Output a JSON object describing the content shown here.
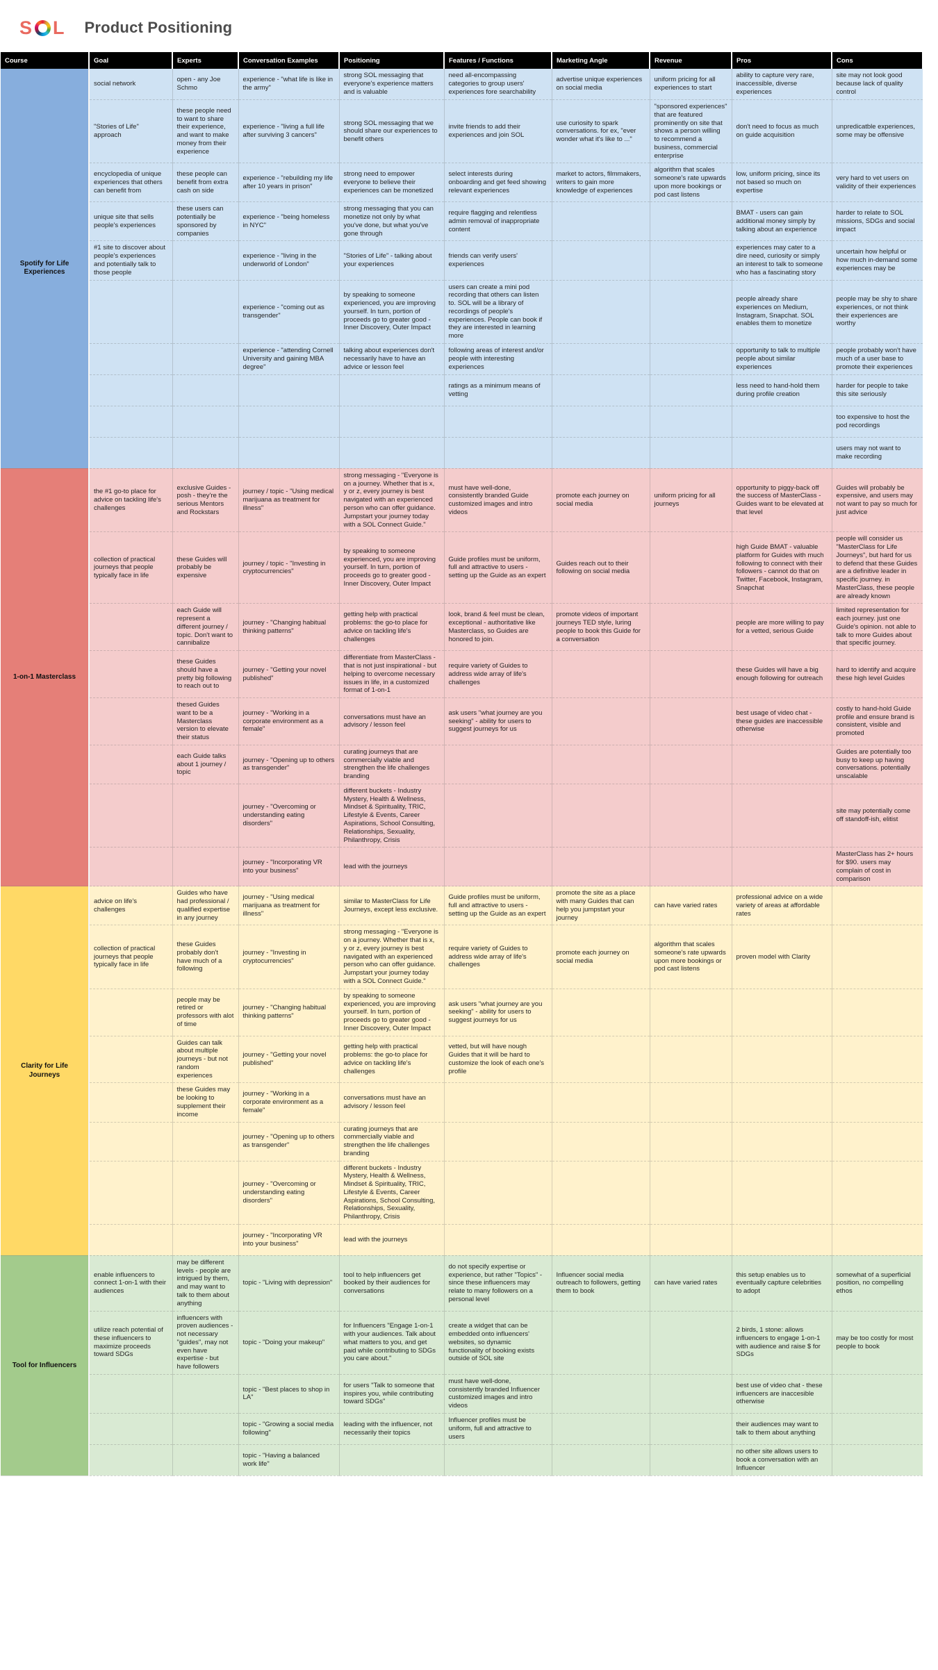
{
  "logo": {
    "s": "S",
    "l": "L"
  },
  "title": "Product Positioning",
  "columns": [
    "Course",
    "Goal",
    "Experts",
    "Conversation Examples",
    "Positioning",
    "Features / Functions",
    "Marketing Angle",
    "Revenue",
    "Pros",
    "Cons"
  ],
  "sections": [
    {
      "course": "Spotify for Life Experiences",
      "colors": {
        "course_bg": "#87AEDD",
        "row_bg": "#CFE2F3"
      },
      "rows": [
        [
          "social network",
          "open - any Joe Schmo",
          "experience - \"what life is like in the army\"",
          "strong SOL messaging that everyone's experience matters and is valuable",
          "need all-encompassing categories to group users' experiences fore searchability",
          "advertise unique experiences on social media",
          "uniform pricing for all experiences to start",
          "ability to capture very rare, inaccessible, diverse experiences",
          "site may not look good because lack of quality control"
        ],
        [
          "\"Stories of Life\" approach",
          "these people need to want to share their experience, and want to make money from their experience",
          "experience - \"living a full life after surviving 3 cancers\"",
          "strong SOL messaging that we should share our experiences to benefit others",
          "invite friends to add their experiences and join SOL",
          "use curiosity to spark conversations. for ex, \"ever wonder what it's like to ...\"",
          "\"sponsored experiences\" that are featured prominently on site that shows a person willing to recommend a business, commercial enterprise",
          "don't need to focus as much on guide acquisition",
          "unpredicatble experiences, some may be offensive"
        ],
        [
          "encyclopedia of unique experiences that others can benefit from",
          "these people can benefit from extra cash on side",
          "experience - \"rebuilding my life after 10 years in prison\"",
          "strong need to empower everyone to believe their experiences can be monetized",
          "select interests during onboarding and get feed showing relevant experiences",
          "market to actors, filmmakers, writers to gain more knowledge of experiences",
          "algorithm that scales someone's rate upwards upon more bookings or pod cast listens",
          "low, uniform pricing, since its not based so much on expertise",
          "very hard to vet users on validity of their experiences"
        ],
        [
          "unique site that sells people's experiences",
          "these users can potentially be sponsored by companies",
          "experience - \"being homeless in NYC\"",
          "strong messaging that you can monetize not only by what you've done, but what you've gone through",
          "require flagging and relentless admin removal of inappropriate content",
          "",
          "",
          "BMAT - users can gain additional money simply by talking about an experience",
          "harder to relate to SOL missions, SDGs and social impact"
        ],
        [
          "#1 site to discover about people's experiences and potentially talk to those people",
          "",
          "experience - \"living in the underworld of London\"",
          "\"Stories of Life\" - talking about your experiences",
          "friends can verify users' experiences",
          "",
          "",
          "experiences may cater to a dire need, curiosity or simply an interest to talk to someone who has a fascinating story",
          "uncertain how helpful or how much in-demand some experiences may be"
        ],
        [
          "",
          "",
          "experience - \"coming out as transgender\"",
          "by speaking to someone experienced, you are improving yourself. In turn, portion of proceeds go to greater good - Inner Discovery, Outer Impact",
          "users can create a mini pod recording that others can listen to. SOL will be a library of recordings of people's experiences. People can book if they are interested in learning more",
          "",
          "",
          "people already share experiences on Medium, Instagram, Snapchat. SOL enables them to monetize",
          "people may be shy to share experiences, or not think their experiences are worthy"
        ],
        [
          "",
          "",
          "experience - \"attending Cornell University and gaining MBA degree\"",
          "talking about experiences don't necessarily have to have an advice or lesson feel",
          "following areas of interest and/or people with interesting experiences",
          "",
          "",
          "opportunity to talk to multiple people about similar experiences",
          "people probably won't have much of a user base to promote their experiences"
        ],
        [
          "",
          "",
          "",
          "",
          "ratings as a minimum means of vetting",
          "",
          "",
          "less need to hand-hold them during profile creation",
          "harder for people to take this site seriously"
        ],
        [
          "",
          "",
          "",
          "",
          "",
          "",
          "",
          "",
          "too expensive to host the pod recordings"
        ],
        [
          "",
          "",
          "",
          "",
          "",
          "",
          "",
          "",
          "users may not want to make recording"
        ]
      ]
    },
    {
      "course": "1-on-1 Masterclass",
      "colors": {
        "course_bg": "#E57F78",
        "row_bg": "#F4CCCC"
      },
      "rows": [
        [
          "the #1 go-to place for advice on tackling life's challenges",
          "exclusive Guides - posh - they're the serious Mentors and Rockstars",
          "journey / topic - \"Using medical marijuana as treatment for illness\"",
          "strong messaging - \"Everyone is on a journey. Whether that is x, y or z, every journey is best navigated with an experienced person who can offer guidance. Jumpstart your journey today with a SOL Connect Guide.\"",
          "must have well-done, consistently branded Guide customized images and intro videos",
          "promote each journey on social media",
          "uniform pricing for all journeys",
          "opportunity to piggy-back off the success of MasterClass - Guides want to be elevated at that level",
          "Guides will probably be expensive, and users may not want to pay so much for just advice"
        ],
        [
          "collection of practical journeys that people typically face in life",
          "these Guides will probably be expensive",
          "journey / topic - \"Investing in cryptocurrencies\"",
          "by speaking to someone experienced, you are improving yourself. In turn, portion of proceeds go to greater good - Inner Discovery, Outer Impact",
          "Guide profiles must be uniform, full and attractive to users - setting up the Guide as an expert",
          "Guides reach out to their following on social media",
          "",
          "high Guide BMAT - valuable platform for Guides with much following to connect with their followers - cannot do that on Twitter, Facebook, Instagram, Snapchat",
          "people will consider us \"MasterClass for Life Journeys\", but hard for us to defend that these Guides are a definitive leader in specific journey. in MasterClass, these people are already known"
        ],
        [
          "",
          "each Guide will represent a different journey / topic. Don't want to cannibalize",
          "journey - \"Changing habitual thinking patterns\"",
          "getting help with practical problems: the go-to place for advice on tackling life's challenges",
          "look, brand & feel must be clean, exceptional - authoritative like Masterclass, so Guides are honored to join.",
          "promote videos of important journeys TED style, luring people to book this Guide for a conversation",
          "",
          "people are more willing to pay for a vetted, serious Guide",
          "limited representation for each journey. just one Guide's opinion. not able to talk to more Guides about that specific journey."
        ],
        [
          "",
          "these Guides should have a pretty big following to reach out to",
          "journey - \"Getting your novel published\"",
          "differentiate from MasterClass - that is not just inspirational - but helping to overcome necessary issues in life, in a customized format of 1-on-1",
          "require variety of Guides to address wide array of life's challenges",
          "",
          "",
          "these Guides will have a big enough following for outreach",
          "hard to identify and acquire these high level Guides"
        ],
        [
          "",
          "thesed Guides want to be a Masterclass version to elevate their status",
          "journey - \"Working in a corporate environment as a female\"",
          "conversations must have an advisory / lesson feel",
          "ask users \"what journey are you seeking\" - ability for users to suggest journeys for us",
          "",
          "",
          "best usage of video chat - these guides are inaccessible otherwise",
          "costly to hand-hold Guide profile and ensure brand is consistent, visible and promoted"
        ],
        [
          "",
          "each Guide talks about 1 journey / topic",
          "journey - \"Opening up to others as transgender\"",
          "curating journeys that are commercially viable and strengthen the life challenges branding",
          "",
          "",
          "",
          "",
          "Guides are potentially too busy to keep up having conversations. potentially unscalable"
        ],
        [
          "",
          "",
          "journey - \"Overcoming or understanding eating disorders\"",
          "different buckets - Industry Mystery, Health & Wellness, Mindset & Spirituality, TRIC, Lifestyle & Events, Career Aspirations, School Consulting, Relationships, Sexuality, Philanthropy, Crisis",
          "",
          "",
          "",
          "",
          "site may potentially come off standoff-ish, elitist"
        ],
        [
          "",
          "",
          "journey - \"Incorporating VR into your business\"",
          "lead with the journeys",
          "",
          "",
          "",
          "",
          "MasterClass has 2+ hours for $90. users may complain of cost in comparison"
        ]
      ]
    },
    {
      "course": "Clarity for Life Journeys",
      "colors": {
        "course_bg": "#FFD966",
        "row_bg": "#FFF2CC"
      },
      "rows": [
        [
          "advice on life's challenges",
          "Guides who have had professional / qualified expertise in any journey",
          "journey - \"Using medical marijuana as treatment for illness\"",
          "similar to MasterClass for Life Journeys, except less exclusive.",
          "Guide profiles must be uniform, full and attractive to users - setting up the Guide as an expert",
          "promote the site as a place with many Guides that can help you jumpstart your journey",
          "can have varied rates",
          "professional advice on a wide variety of areas at affordable rates",
          ""
        ],
        [
          "collection of practical journeys that people typically face in life",
          "these Guides probably don't have much of a following",
          "journey - \"Investing in cryptocurrencies\"",
          "strong messaging - \"Everyone is on a journey. Whether that is x, y or z, every journey is best navigated with an experienced person who can offer guidance. Jumpstart your journey today with a SOL Connect Guide.\"",
          "require variety of Guides to address wide array of life's challenges",
          "promote each journey on social media",
          "algorithm that scales someone's rate upwards upon more bookings or pod cast listens",
          "proven model with Clarity",
          ""
        ],
        [
          "",
          "people may be retired or professors with alot of time",
          "journey - \"Changing habitual thinking patterns\"",
          "by speaking to someone experienced, you are improving yourself. In turn, portion of proceeds go to greater good - Inner Discovery, Outer Impact",
          "ask users \"what journey are you seeking\" - ability for users to suggest journeys for us",
          "",
          "",
          "",
          ""
        ],
        [
          "",
          "Guides can talk about multiple journeys - but not random experiences",
          "journey - \"Getting your novel published\"",
          "getting help with practical problems: the go-to place for advice on tackling life's challenges",
          "vetted, but will have nough Guides that it will be hard to customize the look of each one's profile",
          "",
          "",
          "",
          ""
        ],
        [
          "",
          "these Guides may be looking to supplement their income",
          "journey - \"Working in a corporate environment as a female\"",
          "conversations must have an advisory / lesson feel",
          "",
          "",
          "",
          "",
          ""
        ],
        [
          "",
          "",
          "journey - \"Opening up to others as transgender\"",
          "curating journeys that are commercially viable and strengthen the life challenges branding",
          "",
          "",
          "",
          "",
          ""
        ],
        [
          "",
          "",
          "journey - \"Overcoming or understanding eating disorders\"",
          "different buckets - Industry Mystery, Health & Wellness, Mindset & Spirituality, TRIC, Lifestyle & Events, Career Aspirations, School Consulting, Relationships, Sexuality, Philanthropy, Crisis",
          "",
          "",
          "",
          "",
          ""
        ],
        [
          "",
          "",
          "journey - \"Incorporating VR into your business\"",
          "lead with the journeys",
          "",
          "",
          "",
          "",
          ""
        ]
      ]
    },
    {
      "course": "Tool for Influencers",
      "colors": {
        "course_bg": "#A3CB8C",
        "row_bg": "#D9EAD3"
      },
      "rows": [
        [
          "enable influencers to connect 1-on-1 with their audiences",
          "may be different levels - people are intrigued by them, and may want to talk to them about anything",
          "topic - \"Living with depression\"",
          "tool to help influencers get booked by their audiences for conversations",
          "do not specify expertise or experience, but rather \"Topics\" - since these influencers may relate to many followers on a personal level",
          "Influencer social media outreach to followers, getting them to book",
          "can have varied rates",
          "this setup enables us to eventually capture celebrities to adopt",
          "somewhat of a superficial position, no compelling ethos"
        ],
        [
          "utilize reach potential of these influencers to maximize proceeds toward SDGs",
          "influencers with proven audiences - not necessary \"guides\", may not even have expertise - but have followers",
          "topic - \"Doing your makeup\"",
          "for Influencers \"Engage 1-on-1 with your audiences. Talk about what matters to you, and get paid while contributing to SDGs you care about.\"",
          "create a widget that can be embedded onto influencers' websites, so dynamic functionality of booking exists outside of SOL site",
          "",
          "",
          "2 birds, 1 stone: allows influencers to engage 1-on-1 with audience and raise $ for SDGs",
          "may be too costly for most people to book"
        ],
        [
          "",
          "",
          "topic - \"Best places to shop in LA\"",
          "for users \"Talk to someone that inspires you, while contributing toward SDGs\"",
          "must have well-done, consistently branded Influencer customized images and intro videos",
          "",
          "",
          "best use of video chat - these influencers are inaccesible otherwise",
          ""
        ],
        [
          "",
          "",
          "topic - \"Growing a social media following\"",
          "leading with the influencer, not necessarily their topics",
          "Influencer profiles must be uniform, full and attractive to users",
          "",
          "",
          "their audiences may want to talk to them about anything",
          ""
        ],
        [
          "",
          "",
          "topic - \"Having a balanced work life\"",
          "",
          "",
          "",
          "",
          "no other site allows users to book a conversation with an Influencer",
          ""
        ]
      ]
    }
  ]
}
